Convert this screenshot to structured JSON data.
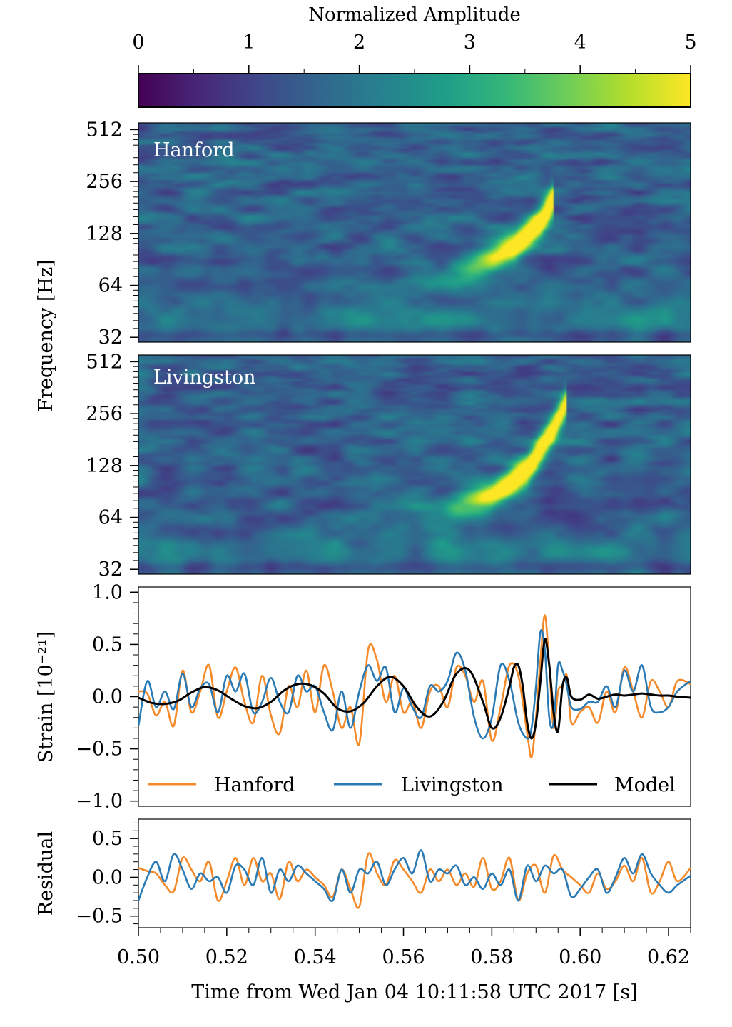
{
  "colors": {
    "hanford": "#f58a2a",
    "livingston": "#2a7ab5",
    "model": "#000000",
    "viridis": [
      "#440154",
      "#482878",
      "#3e4989",
      "#31688e",
      "#26828e",
      "#1f9e89",
      "#35b779",
      "#6ece58",
      "#b5de2b",
      "#fde725"
    ]
  },
  "chart_data": [
    {
      "id": "colorbar",
      "type": "colorbar",
      "title": "Normalized Amplitude",
      "range": [
        0,
        5
      ],
      "ticks": [
        "0",
        "1",
        "2",
        "3",
        "4",
        "5"
      ],
      "colormap": "viridis"
    },
    {
      "id": "hanford_spectrogram",
      "type": "heatmap",
      "label": "Hanford",
      "ylabel": "Frequency [Hz]",
      "yscale": "log2",
      "ylim": [
        30,
        560
      ],
      "yticks": [
        "32",
        "64",
        "128",
        "256",
        "512"
      ],
      "xlim": [
        0.5,
        0.625
      ],
      "peak": {
        "time": 0.591,
        "freq_hz": 160,
        "value": 5.0
      },
      "track": [
        [
          0.54,
          55
        ],
        [
          0.56,
          65
        ],
        [
          0.575,
          80
        ],
        [
          0.585,
          105
        ],
        [
          0.591,
          150
        ],
        [
          0.594,
          200
        ]
      ]
    },
    {
      "id": "livingston_spectrogram",
      "type": "heatmap",
      "label": "Livingston",
      "yscale": "log2",
      "ylim": [
        30,
        560
      ],
      "yticks": [
        "32",
        "64",
        "128",
        "256",
        "512"
      ],
      "xlim": [
        0.5,
        0.625
      ],
      "peak": {
        "time": 0.588,
        "freq_hz": 145,
        "value": 4.8
      },
      "track": [
        [
          0.52,
          50
        ],
        [
          0.55,
          58
        ],
        [
          0.57,
          70
        ],
        [
          0.58,
          85
        ],
        [
          0.588,
          120
        ],
        [
          0.594,
          210
        ],
        [
          0.597,
          300
        ]
      ]
    },
    {
      "id": "strain",
      "type": "line",
      "ylabel": "Strain [10⁻²¹]",
      "ylim": [
        -1.05,
        1.05
      ],
      "yticks": [
        "1.0",
        "0.5",
        "0.0",
        "−0.5",
        "−1.0"
      ],
      "xlim": [
        0.5,
        0.625
      ],
      "legend": [
        "Hanford",
        "Livingston",
        "Model"
      ],
      "series": [
        {
          "name": "Hanford",
          "x": [
            0.5,
            0.502,
            0.504,
            0.506,
            0.508,
            0.51,
            0.512,
            0.514,
            0.516,
            0.518,
            0.52,
            0.522,
            0.524,
            0.526,
            0.528,
            0.53,
            0.532,
            0.534,
            0.536,
            0.538,
            0.54,
            0.542,
            0.544,
            0.546,
            0.548,
            0.55,
            0.552,
            0.554,
            0.556,
            0.558,
            0.56,
            0.562,
            0.564,
            0.566,
            0.568,
            0.57,
            0.572,
            0.574,
            0.576,
            0.578,
            0.58,
            0.582,
            0.584,
            0.586,
            0.588,
            0.589,
            0.59,
            0.591,
            0.592,
            0.593,
            0.594,
            0.595,
            0.596,
            0.597,
            0.598,
            0.6,
            0.602,
            0.604,
            0.606,
            0.608,
            0.61,
            0.612,
            0.614,
            0.616,
            0.618,
            0.62,
            0.622,
            0.625
          ],
          "values": [
            0.05,
            0.03,
            -0.18,
            -0.05,
            -0.28,
            0.25,
            -0.15,
            0.05,
            0.3,
            -0.2,
            0.05,
            0.28,
            -0.05,
            -0.25,
            0.2,
            -0.18,
            -0.35,
            0.1,
            -0.1,
            0.25,
            -0.15,
            0.3,
            0.05,
            -0.3,
            -0.1,
            -0.45,
            0.45,
            0.35,
            -0.05,
            0.2,
            -0.15,
            -0.05,
            -0.3,
            0.05,
            0.1,
            -0.1,
            0.28,
            0.2,
            -0.05,
            0.15,
            -0.42,
            -0.1,
            0.3,
            0.2,
            -0.35,
            -0.58,
            -0.2,
            0.35,
            0.78,
            0.3,
            -0.3,
            0.05,
            0.1,
            0.2,
            -0.25,
            -0.15,
            -0.1,
            -0.25,
            0.05,
            -0.15,
            0.28,
            0.05,
            -0.2,
            0.15,
            0.05,
            -0.1,
            0.15,
            0.12
          ]
        },
        {
          "name": "Livingston",
          "x": [
            0.5,
            0.502,
            0.504,
            0.506,
            0.508,
            0.51,
            0.512,
            0.514,
            0.516,
            0.518,
            0.52,
            0.522,
            0.524,
            0.526,
            0.528,
            0.53,
            0.532,
            0.534,
            0.536,
            0.538,
            0.54,
            0.542,
            0.544,
            0.546,
            0.548,
            0.55,
            0.552,
            0.554,
            0.556,
            0.558,
            0.56,
            0.562,
            0.564,
            0.566,
            0.568,
            0.57,
            0.572,
            0.574,
            0.576,
            0.578,
            0.58,
            0.582,
            0.584,
            0.586,
            0.588,
            0.589,
            0.59,
            0.591,
            0.592,
            0.593,
            0.594,
            0.595,
            0.596,
            0.597,
            0.598,
            0.6,
            0.602,
            0.604,
            0.606,
            0.608,
            0.61,
            0.612,
            0.614,
            0.616,
            0.618,
            0.62,
            0.622,
            0.625
          ],
          "values": [
            -0.28,
            0.15,
            -0.1,
            0.05,
            -0.12,
            0.22,
            -0.1,
            0.08,
            0.12,
            -0.15,
            0.2,
            0.05,
            0.22,
            -0.15,
            -0.05,
            0.18,
            -0.05,
            -0.15,
            0.2,
            0.05,
            0.1,
            -0.15,
            -0.32,
            0.05,
            -0.3,
            0.05,
            0.3,
            0.15,
            0.28,
            -0.15,
            0.08,
            -0.1,
            -0.2,
            0.1,
            0.05,
            0.15,
            0.42,
            0.25,
            -0.2,
            -0.4,
            -0.2,
            0.3,
            0.15,
            -0.25,
            -0.4,
            -0.3,
            0.1,
            0.62,
            0.45,
            -0.2,
            -0.25,
            0.3,
            0.25,
            0.1,
            -0.1,
            -0.12,
            -0.05,
            -0.05,
            0.1,
            -0.1,
            0.25,
            0.05,
            0.3,
            -0.1,
            -0.15,
            -0.1,
            0.05,
            0.15
          ]
        },
        {
          "name": "Model",
          "x": [
            0.5,
            0.503,
            0.506,
            0.509,
            0.512,
            0.515,
            0.518,
            0.521,
            0.524,
            0.527,
            0.53,
            0.533,
            0.536,
            0.539,
            0.542,
            0.545,
            0.548,
            0.551,
            0.554,
            0.557,
            0.56,
            0.563,
            0.566,
            0.569,
            0.572,
            0.575,
            0.578,
            0.58,
            0.582,
            0.584,
            0.585,
            0.586,
            0.587,
            0.588,
            0.589,
            0.59,
            0.591,
            0.592,
            0.593,
            0.594,
            0.595,
            0.596,
            0.597,
            0.598,
            0.6,
            0.602,
            0.604,
            0.606,
            0.608,
            0.61,
            0.612,
            0.614,
            0.616,
            0.618,
            0.62,
            0.622,
            0.625
          ],
          "values": [
            -0.01,
            -0.06,
            -0.07,
            -0.04,
            0.04,
            0.09,
            0.06,
            -0.02,
            -0.09,
            -0.11,
            -0.05,
            0.06,
            0.12,
            0.11,
            0.03,
            -0.11,
            -0.14,
            -0.06,
            0.1,
            0.19,
            0.1,
            -0.1,
            -0.19,
            -0.05,
            0.22,
            0.25,
            -0.05,
            -0.3,
            -0.2,
            0.1,
            0.28,
            0.3,
            0.1,
            -0.25,
            -0.4,
            -0.25,
            0.15,
            0.55,
            0.3,
            -0.15,
            -0.33,
            0.1,
            0.18,
            0.0,
            -0.03,
            0.02,
            -0.02,
            0.0,
            0.02,
            0.01,
            0.02,
            0.03,
            0.02,
            0.01,
            0.01,
            0.0,
            -0.01
          ]
        }
      ]
    },
    {
      "id": "residual",
      "type": "line",
      "ylabel": "Residual",
      "ylim": [
        -0.65,
        0.75
      ],
      "yticks": [
        "0.5",
        "0.0",
        "−0.5"
      ],
      "xlim": [
        0.5,
        0.625
      ],
      "xticks": [
        "0.50",
        "0.52",
        "0.54",
        "0.56",
        "0.58",
        "0.60",
        "0.62"
      ],
      "xlabel": "Time from Wed Jan 04 10:11:58 UTC 2017 [s]",
      "series": [
        {
          "name": "Hanford",
          "x": [
            0.5,
            0.502,
            0.504,
            0.506,
            0.508,
            0.51,
            0.512,
            0.514,
            0.516,
            0.518,
            0.52,
            0.522,
            0.524,
            0.526,
            0.528,
            0.53,
            0.532,
            0.534,
            0.536,
            0.538,
            0.54,
            0.542,
            0.544,
            0.546,
            0.548,
            0.55,
            0.552,
            0.554,
            0.556,
            0.558,
            0.56,
            0.562,
            0.564,
            0.566,
            0.568,
            0.57,
            0.572,
            0.574,
            0.576,
            0.578,
            0.58,
            0.582,
            0.584,
            0.586,
            0.588,
            0.59,
            0.592,
            0.594,
            0.596,
            0.598,
            0.6,
            0.602,
            0.604,
            0.606,
            0.608,
            0.61,
            0.612,
            0.614,
            0.616,
            0.618,
            0.62,
            0.622,
            0.625
          ],
          "values": [
            0.12,
            0.08,
            0.05,
            -0.1,
            -0.18,
            0.25,
            0.1,
            -0.05,
            0.2,
            -0.3,
            -0.05,
            0.25,
            -0.1,
            0.25,
            -0.05,
            0.05,
            -0.28,
            0.2,
            -0.05,
            0.1,
            0.0,
            -0.1,
            -0.25,
            0.1,
            -0.15,
            -0.38,
            0.3,
            0.05,
            -0.1,
            0.22,
            0.1,
            -0.05,
            -0.2,
            0.1,
            -0.05,
            0.1,
            -0.1,
            0.05,
            -0.12,
            0.25,
            -0.15,
            -0.05,
            0.25,
            -0.3,
            0.05,
            0.15,
            -0.2,
            0.28,
            0.1,
            0.0,
            -0.1,
            -0.2,
            0.05,
            -0.15,
            -0.05,
            0.15,
            -0.05,
            0.25,
            -0.2,
            -0.05,
            0.2,
            -0.05,
            0.12
          ]
        },
        {
          "name": "Livingston",
          "x": [
            0.5,
            0.502,
            0.504,
            0.506,
            0.508,
            0.51,
            0.512,
            0.514,
            0.516,
            0.518,
            0.52,
            0.522,
            0.524,
            0.526,
            0.528,
            0.53,
            0.532,
            0.534,
            0.536,
            0.538,
            0.54,
            0.542,
            0.544,
            0.546,
            0.548,
            0.55,
            0.552,
            0.554,
            0.556,
            0.558,
            0.56,
            0.562,
            0.564,
            0.566,
            0.568,
            0.57,
            0.572,
            0.574,
            0.576,
            0.578,
            0.58,
            0.582,
            0.584,
            0.586,
            0.588,
            0.59,
            0.592,
            0.594,
            0.596,
            0.598,
            0.6,
            0.602,
            0.604,
            0.606,
            0.608,
            0.61,
            0.612,
            0.614,
            0.616,
            0.618,
            0.62,
            0.622,
            0.625
          ],
          "values": [
            -0.3,
            0.0,
            0.2,
            -0.05,
            0.3,
            0.1,
            -0.15,
            0.05,
            -0.05,
            0.0,
            -0.2,
            0.15,
            0.1,
            -0.1,
            0.25,
            -0.2,
            0.1,
            -0.05,
            0.15,
            0.05,
            -0.05,
            -0.15,
            -0.3,
            0.1,
            -0.2,
            0.1,
            0.05,
            0.2,
            -0.1,
            0.1,
            0.25,
            0.05,
            0.35,
            -0.05,
            0.1,
            0.05,
            0.15,
            -0.1,
            0.0,
            -0.15,
            0.05,
            -0.1,
            0.1,
            -0.3,
            0.15,
            -0.05,
            0.15,
            0.05,
            0.1,
            -0.25,
            -0.15,
            0.0,
            0.1,
            -0.2,
            0.0,
            0.25,
            0.05,
            0.3,
            0.05,
            -0.1,
            -0.2,
            -0.1,
            0.02
          ]
        }
      ]
    }
  ]
}
